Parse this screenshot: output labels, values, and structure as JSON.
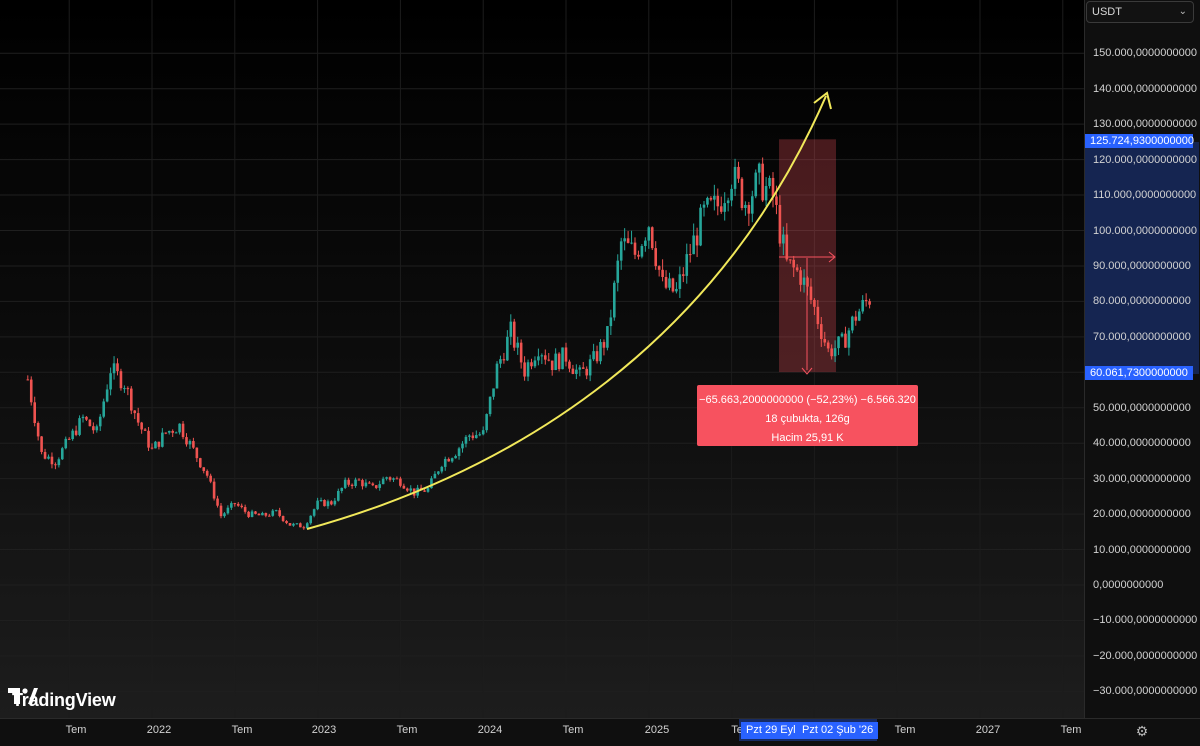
{
  "toolbar": {
    "currency": "USDT"
  },
  "price_scale": {
    "ticks": [
      "150.000,0000000000",
      "140.000,0000000000",
      "130.000,0000000000",
      "120.000,0000000000",
      "110.000,0000000000",
      "100.000,0000000000",
      "90.000,0000000000",
      "80.000,0000000000",
      "70.000,0000000000",
      "50.000,0000000000",
      "40.000,0000000000",
      "30.000,0000000000",
      "20.000,0000000000",
      "10.000,0000000000",
      "0,0000000000",
      "−10.000,0000000000",
      "−20.000,0000000000",
      "−30.000,0000000000"
    ],
    "high_marker": "125.724,9300000000",
    "low_marker": "60.061,7300000000"
  },
  "time_axis": {
    "ticks": [
      "Tem",
      "2022",
      "Tem",
      "2023",
      "Tem",
      "2024",
      "Tem",
      "2025",
      "Te",
      "Tem",
      "2027",
      "Tem"
    ],
    "range_start": "Pzt 29 Eyl",
    "range_end": "Pzt 02 Şub '26"
  },
  "measure": {
    "line1": "−65.663,2000000000 (−52,23%) −6.566.320",
    "line2": "18 çubukta, 126g",
    "line3": "Hacim 25,91 K"
  },
  "brand": {
    "name": "TradingView"
  },
  "colors": {
    "up": "#26a69a",
    "down": "#ef5350",
    "accent": "#2962ff",
    "trend": "#f1e85a",
    "measure": "#f7525f"
  },
  "chart_data": {
    "type": "candlestick",
    "symbol_currency": "USDT",
    "y_range": [
      -35000,
      155000
    ],
    "x_range": [
      "2021-03",
      "2027-09"
    ],
    "interval": "1W",
    "series_closes": [
      [
        "2021-04",
        58000
      ],
      [
        "2021-05",
        37000
      ],
      [
        "2021-06",
        35000
      ],
      [
        "2021-07",
        41000
      ],
      [
        "2021-08",
        47000
      ],
      [
        "2021-09",
        43000
      ],
      [
        "2021-10",
        61000
      ],
      [
        "2021-11",
        57000
      ],
      [
        "2021-12",
        46000
      ],
      [
        "2022-01",
        38000
      ],
      [
        "2022-02",
        43000
      ],
      [
        "2022-03",
        45000
      ],
      [
        "2022-04",
        38000
      ],
      [
        "2022-05",
        31000
      ],
      [
        "2022-06",
        19500
      ],
      [
        "2022-07",
        23000
      ],
      [
        "2022-08",
        20000
      ],
      [
        "2022-09",
        19500
      ],
      [
        "2022-10",
        20500
      ],
      [
        "2022-11",
        17000
      ],
      [
        "2022-12",
        16600
      ],
      [
        "2023-01",
        23000
      ],
      [
        "2023-02",
        23200
      ],
      [
        "2023-03",
        28500
      ],
      [
        "2023-04",
        29300
      ],
      [
        "2023-05",
        27200
      ],
      [
        "2023-06",
        30500
      ],
      [
        "2023-07",
        29300
      ],
      [
        "2023-08",
        26000
      ],
      [
        "2023-09",
        27000
      ],
      [
        "2023-10",
        34700
      ],
      [
        "2023-11",
        37700
      ],
      [
        "2023-12",
        42300
      ],
      [
        "2024-01",
        42600
      ],
      [
        "2024-02",
        61200
      ],
      [
        "2024-03",
        71300
      ],
      [
        "2024-04",
        60600
      ],
      [
        "2024-05",
        67500
      ],
      [
        "2024-06",
        62700
      ],
      [
        "2024-07",
        64600
      ],
      [
        "2024-08",
        59000
      ],
      [
        "2024-09",
        63300
      ],
      [
        "2024-10",
        70200
      ],
      [
        "2024-11",
        96400
      ],
      [
        "2024-12",
        93400
      ],
      [
        "2025-01",
        102400
      ],
      [
        "2025-02",
        84300
      ],
      [
        "2025-03",
        82500
      ],
      [
        "2025-04",
        94200
      ],
      [
        "2025-05",
        104600
      ],
      [
        "2025-06",
        107100
      ],
      [
        "2025-07",
        115700
      ],
      [
        "2025-08",
        108200
      ],
      [
        "2025-09",
        114000
      ],
      [
        "2025-10",
        109500
      ],
      [
        "2025-11",
        90400
      ],
      [
        "2025-12",
        87500
      ],
      [
        "2026-01",
        78000
      ],
      [
        "2026-02",
        66000
      ],
      [
        "2026-03",
        68000
      ],
      [
        "2026-04",
        76000
      ],
      [
        "2026-05",
        81000
      ]
    ],
    "all_time_high": 125724.93,
    "measured_low": 60061.73,
    "measurement": {
      "change": -65663.2,
      "change_pct": -52.23,
      "bars": 18,
      "days": 126,
      "volume": "25,91 K"
    },
    "annotations": [
      "exponential trend curve with arrow",
      "price range measurement box"
    ],
    "grid": true
  }
}
